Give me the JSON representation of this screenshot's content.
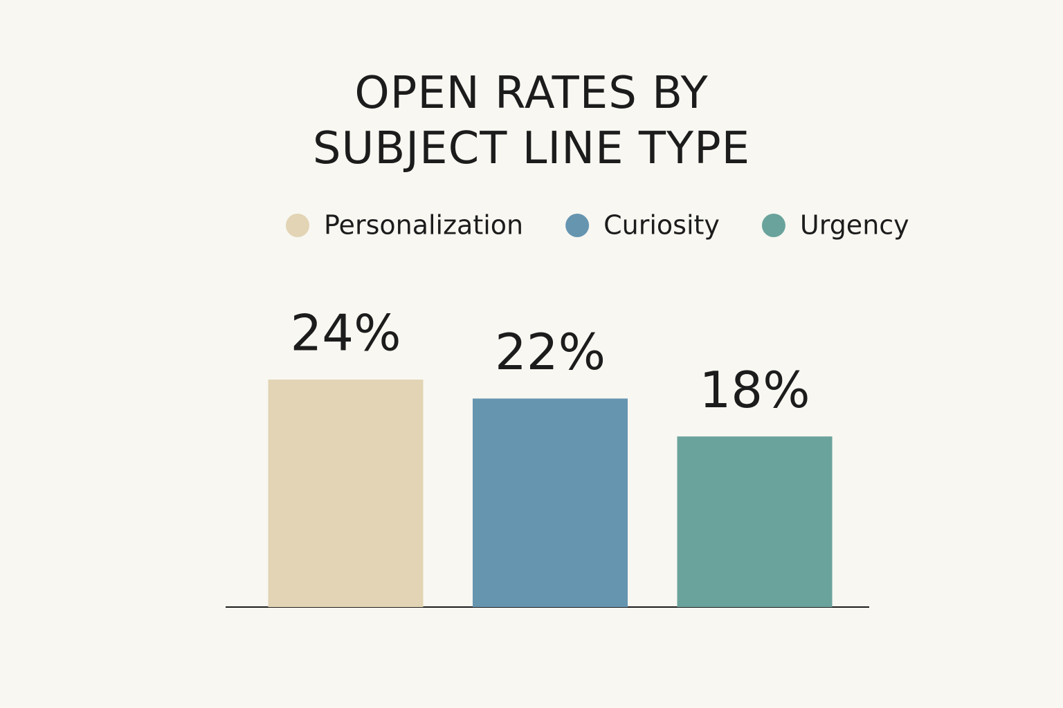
{
  "chart_data": {
    "type": "bar",
    "title": "OPEN RATES BY SUBJECT LINE TYPE",
    "series": [
      {
        "name": "Personalization",
        "color": "#e2d4b4",
        "values": [
          24
        ],
        "value_labels": [
          "24%"
        ]
      },
      {
        "name": "Curiosity",
        "color": "#6695b0",
        "values": [
          22
        ],
        "value_labels": [
          "22%"
        ]
      },
      {
        "name": "Urgency",
        "color": "#6aa39c",
        "values": [
          18
        ],
        "value_labels": [
          "18%"
        ]
      }
    ]
  }
}
